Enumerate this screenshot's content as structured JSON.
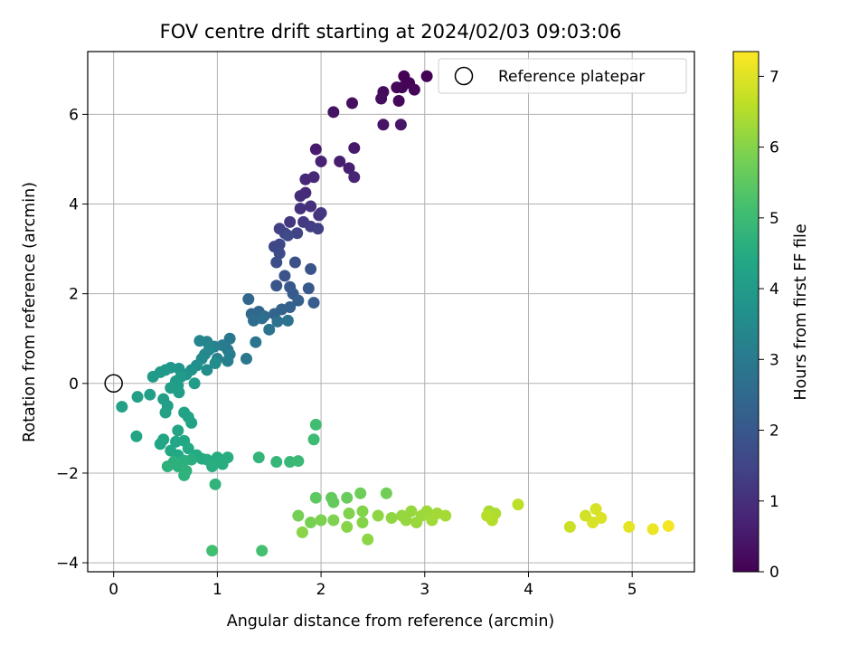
{
  "chart_data": {
    "type": "scatter",
    "title": "FOV centre drift starting at 2024/02/03 09:03:06",
    "xlabel": "Angular distance from reference (arcmin)",
    "ylabel": "Rotation from reference (arcmin)",
    "xlim": [
      -0.25,
      5.6
    ],
    "ylim": [
      -4.2,
      7.4
    ],
    "xticks": [
      0,
      1,
      2,
      3,
      4,
      5
    ],
    "yticks": [
      -4,
      -2,
      0,
      2,
      4,
      6
    ],
    "xtick_labels": [
      "0",
      "1",
      "2",
      "3",
      "4",
      "5"
    ],
    "ytick_labels": [
      "−4",
      "−2",
      "0",
      "2",
      "4",
      "6"
    ],
    "grid": true,
    "colormap": "viridis",
    "colorbar": {
      "label": "Hours from first FF file",
      "range": [
        0,
        7.35
      ],
      "ticks": [
        0,
        1,
        2,
        3,
        4,
        5,
        6,
        7
      ],
      "tick_labels": [
        "0",
        "1",
        "2",
        "3",
        "4",
        "5",
        "6",
        "7"
      ]
    },
    "legend": {
      "position": "top-right",
      "entries": [
        {
          "label": "Reference platepar",
          "marker": "open-circle"
        }
      ]
    },
    "reference_point": {
      "x": 0,
      "y": 0
    },
    "series": [
      {
        "columns": [
          "x",
          "y",
          "hours"
        ],
        "points": [
          [
            2.8,
            6.85,
            0.0
          ],
          [
            3.02,
            6.85,
            0.03
          ],
          [
            2.85,
            6.7,
            0.05
          ],
          [
            2.78,
            6.6,
            0.08
          ],
          [
            2.9,
            6.55,
            0.1
          ],
          [
            2.73,
            6.6,
            0.12
          ],
          [
            2.75,
            6.3,
            0.15
          ],
          [
            2.6,
            6.5,
            0.2
          ],
          [
            2.58,
            6.35,
            0.25
          ],
          [
            2.3,
            6.25,
            0.3
          ],
          [
            2.12,
            6.05,
            0.35
          ],
          [
            2.6,
            5.77,
            0.4
          ],
          [
            2.77,
            5.77,
            0.45
          ],
          [
            2.32,
            5.25,
            0.5
          ],
          [
            1.95,
            5.22,
            0.55
          ],
          [
            2.18,
            4.95,
            0.6
          ],
          [
            2.27,
            4.8,
            0.65
          ],
          [
            2.0,
            4.95,
            0.7
          ],
          [
            2.32,
            4.6,
            0.75
          ],
          [
            1.85,
            4.55,
            0.8
          ],
          [
            1.93,
            4.6,
            0.85
          ],
          [
            1.85,
            4.25,
            0.9
          ],
          [
            1.8,
            4.18,
            0.95
          ],
          [
            1.9,
            3.95,
            1.0
          ],
          [
            1.8,
            3.9,
            1.05
          ],
          [
            1.98,
            3.75,
            1.1
          ],
          [
            2.0,
            3.8,
            1.15
          ],
          [
            1.7,
            3.6,
            1.2
          ],
          [
            1.83,
            3.6,
            1.25
          ],
          [
            1.9,
            3.5,
            1.3
          ],
          [
            1.97,
            3.45,
            1.35
          ],
          [
            1.6,
            3.45,
            1.4
          ],
          [
            1.65,
            3.35,
            1.45
          ],
          [
            1.77,
            3.35,
            1.5
          ],
          [
            1.55,
            3.05,
            1.55
          ],
          [
            1.6,
            3.1,
            1.6
          ],
          [
            1.68,
            3.3,
            1.65
          ],
          [
            1.6,
            2.9,
            1.7
          ],
          [
            1.57,
            2.7,
            1.75
          ],
          [
            1.75,
            2.7,
            1.8
          ],
          [
            1.65,
            2.4,
            1.85
          ],
          [
            1.9,
            2.55,
            1.9
          ],
          [
            1.57,
            2.18,
            1.95
          ],
          [
            1.7,
            2.15,
            2.0
          ],
          [
            1.88,
            2.12,
            2.05
          ],
          [
            1.73,
            2.0,
            2.1
          ],
          [
            1.93,
            1.8,
            2.15
          ],
          [
            1.78,
            1.85,
            2.2
          ],
          [
            1.7,
            1.7,
            2.25
          ],
          [
            1.62,
            1.65,
            2.3
          ],
          [
            1.55,
            1.55,
            2.35
          ],
          [
            1.3,
            1.88,
            2.4
          ],
          [
            1.4,
            1.6,
            2.45
          ],
          [
            1.33,
            1.55,
            2.5
          ],
          [
            1.45,
            1.5,
            2.55
          ],
          [
            1.35,
            1.4,
            2.6
          ],
          [
            1.43,
            1.45,
            2.65
          ],
          [
            1.58,
            1.38,
            2.7
          ],
          [
            1.68,
            1.4,
            2.75
          ],
          [
            1.5,
            1.2,
            2.8
          ],
          [
            1.37,
            0.92,
            2.85
          ],
          [
            1.28,
            0.55,
            2.9
          ],
          [
            1.12,
            1.0,
            2.95
          ],
          [
            1.1,
            0.75,
            3.0
          ],
          [
            1.05,
            0.85,
            3.05
          ],
          [
            1.12,
            0.65,
            3.1
          ],
          [
            1.1,
            0.5,
            3.15
          ],
          [
            1.0,
            0.55,
            3.2
          ],
          [
            0.97,
            0.82,
            3.25
          ],
          [
            0.9,
            0.93,
            3.3
          ],
          [
            0.83,
            0.95,
            3.35
          ],
          [
            0.92,
            0.75,
            3.4
          ],
          [
            0.88,
            0.65,
            3.45
          ],
          [
            0.85,
            0.55,
            3.5
          ],
          [
            0.98,
            0.45,
            3.55
          ],
          [
            0.9,
            0.3,
            3.6
          ],
          [
            0.8,
            0.4,
            3.65
          ],
          [
            0.75,
            0.3,
            3.7
          ],
          [
            0.7,
            0.2,
            3.75
          ],
          [
            0.63,
            0.33,
            3.8
          ],
          [
            0.55,
            0.35,
            3.85
          ],
          [
            0.5,
            0.3,
            3.9
          ],
          [
            0.45,
            0.25,
            3.92
          ],
          [
            0.38,
            0.15,
            3.95
          ],
          [
            0.65,
            0.15,
            3.97
          ],
          [
            0.6,
            0.05,
            4.0
          ],
          [
            0.78,
            0.0,
            4.02
          ],
          [
            0.62,
            -0.05,
            4.04
          ],
          [
            0.55,
            -0.1,
            4.06
          ],
          [
            0.63,
            -0.2,
            4.08
          ],
          [
            0.48,
            -0.35,
            4.1
          ],
          [
            0.35,
            -0.25,
            4.12
          ],
          [
            0.23,
            -0.3,
            4.14
          ],
          [
            0.52,
            -0.5,
            4.16
          ],
          [
            0.5,
            -0.65,
            4.18
          ],
          [
            0.08,
            -0.52,
            4.2
          ],
          [
            0.68,
            -0.65,
            4.22
          ],
          [
            0.72,
            -0.75,
            4.24
          ],
          [
            0.75,
            -0.88,
            4.26
          ],
          [
            0.62,
            -1.05,
            4.28
          ],
          [
            0.22,
            -1.18,
            4.3
          ],
          [
            0.48,
            -1.25,
            4.32
          ],
          [
            0.45,
            -1.35,
            4.34
          ],
          [
            0.6,
            -1.3,
            4.36
          ],
          [
            0.68,
            -1.28,
            4.38
          ],
          [
            0.55,
            -1.5,
            4.4
          ],
          [
            0.62,
            -1.6,
            4.42
          ],
          [
            0.72,
            -1.45,
            4.44
          ],
          [
            0.8,
            -1.6,
            4.46
          ],
          [
            0.85,
            -1.68,
            4.48
          ],
          [
            0.9,
            -1.7,
            4.5
          ],
          [
            1.0,
            -1.65,
            4.52
          ],
          [
            1.1,
            -1.65,
            4.54
          ],
          [
            1.05,
            -1.8,
            4.56
          ],
          [
            0.95,
            -1.85,
            4.58
          ],
          [
            0.75,
            -1.7,
            4.6
          ],
          [
            0.68,
            -1.72,
            4.62
          ],
          [
            0.58,
            -1.75,
            4.64
          ],
          [
            0.52,
            -1.85,
            4.66
          ],
          [
            0.62,
            -1.85,
            4.68
          ],
          [
            0.7,
            -1.95,
            4.7
          ],
          [
            0.68,
            -2.05,
            4.72
          ],
          [
            0.98,
            -2.25,
            4.75
          ],
          [
            1.4,
            -1.65,
            4.8
          ],
          [
            1.57,
            -1.75,
            4.85
          ],
          [
            1.7,
            -1.75,
            4.9
          ],
          [
            1.78,
            -1.73,
            4.95
          ],
          [
            1.93,
            -1.25,
            5.0
          ],
          [
            1.95,
            -0.92,
            5.05
          ],
          [
            0.95,
            -3.73,
            5.1
          ],
          [
            1.43,
            -3.73,
            5.15
          ],
          [
            1.95,
            -2.55,
            5.5
          ],
          [
            2.1,
            -2.55,
            5.55
          ],
          [
            2.12,
            -2.65,
            5.6
          ],
          [
            2.25,
            -2.55,
            5.65
          ],
          [
            2.38,
            -2.45,
            5.7
          ],
          [
            2.63,
            -2.45,
            5.75
          ],
          [
            1.78,
            -2.95,
            5.8
          ],
          [
            1.9,
            -3.1,
            5.85
          ],
          [
            2.0,
            -3.05,
            5.9
          ],
          [
            2.12,
            -3.05,
            5.92
          ],
          [
            2.27,
            -2.9,
            5.95
          ],
          [
            2.4,
            -2.85,
            5.97
          ],
          [
            2.4,
            -3.1,
            6.0
          ],
          [
            2.25,
            -3.2,
            6.02
          ],
          [
            1.82,
            -3.32,
            6.05
          ],
          [
            2.45,
            -3.48,
            6.08
          ],
          [
            2.55,
            -2.95,
            6.1
          ],
          [
            2.68,
            -3.0,
            6.12
          ],
          [
            2.78,
            -2.95,
            6.15
          ],
          [
            2.82,
            -3.05,
            6.18
          ],
          [
            2.87,
            -2.85,
            6.2
          ],
          [
            2.92,
            -3.1,
            6.22
          ],
          [
            2.97,
            -2.95,
            6.25
          ],
          [
            3.02,
            -2.85,
            6.28
          ],
          [
            3.07,
            -3.05,
            6.3
          ],
          [
            3.12,
            -2.9,
            6.32
          ],
          [
            3.2,
            -2.95,
            6.35
          ],
          [
            3.62,
            -2.85,
            6.4
          ],
          [
            3.68,
            -2.9,
            6.45
          ],
          [
            3.65,
            -3.05,
            6.5
          ],
          [
            3.6,
            -2.95,
            6.55
          ],
          [
            3.9,
            -2.7,
            6.6
          ],
          [
            4.4,
            -3.2,
            6.75
          ],
          [
            4.55,
            -2.95,
            6.85
          ],
          [
            4.65,
            -2.8,
            6.9
          ],
          [
            4.62,
            -3.1,
            6.92
          ],
          [
            4.7,
            -3.0,
            6.95
          ],
          [
            4.97,
            -3.2,
            7.05
          ],
          [
            5.2,
            -3.25,
            7.15
          ],
          [
            5.35,
            -3.18,
            7.25
          ]
        ]
      }
    ]
  }
}
